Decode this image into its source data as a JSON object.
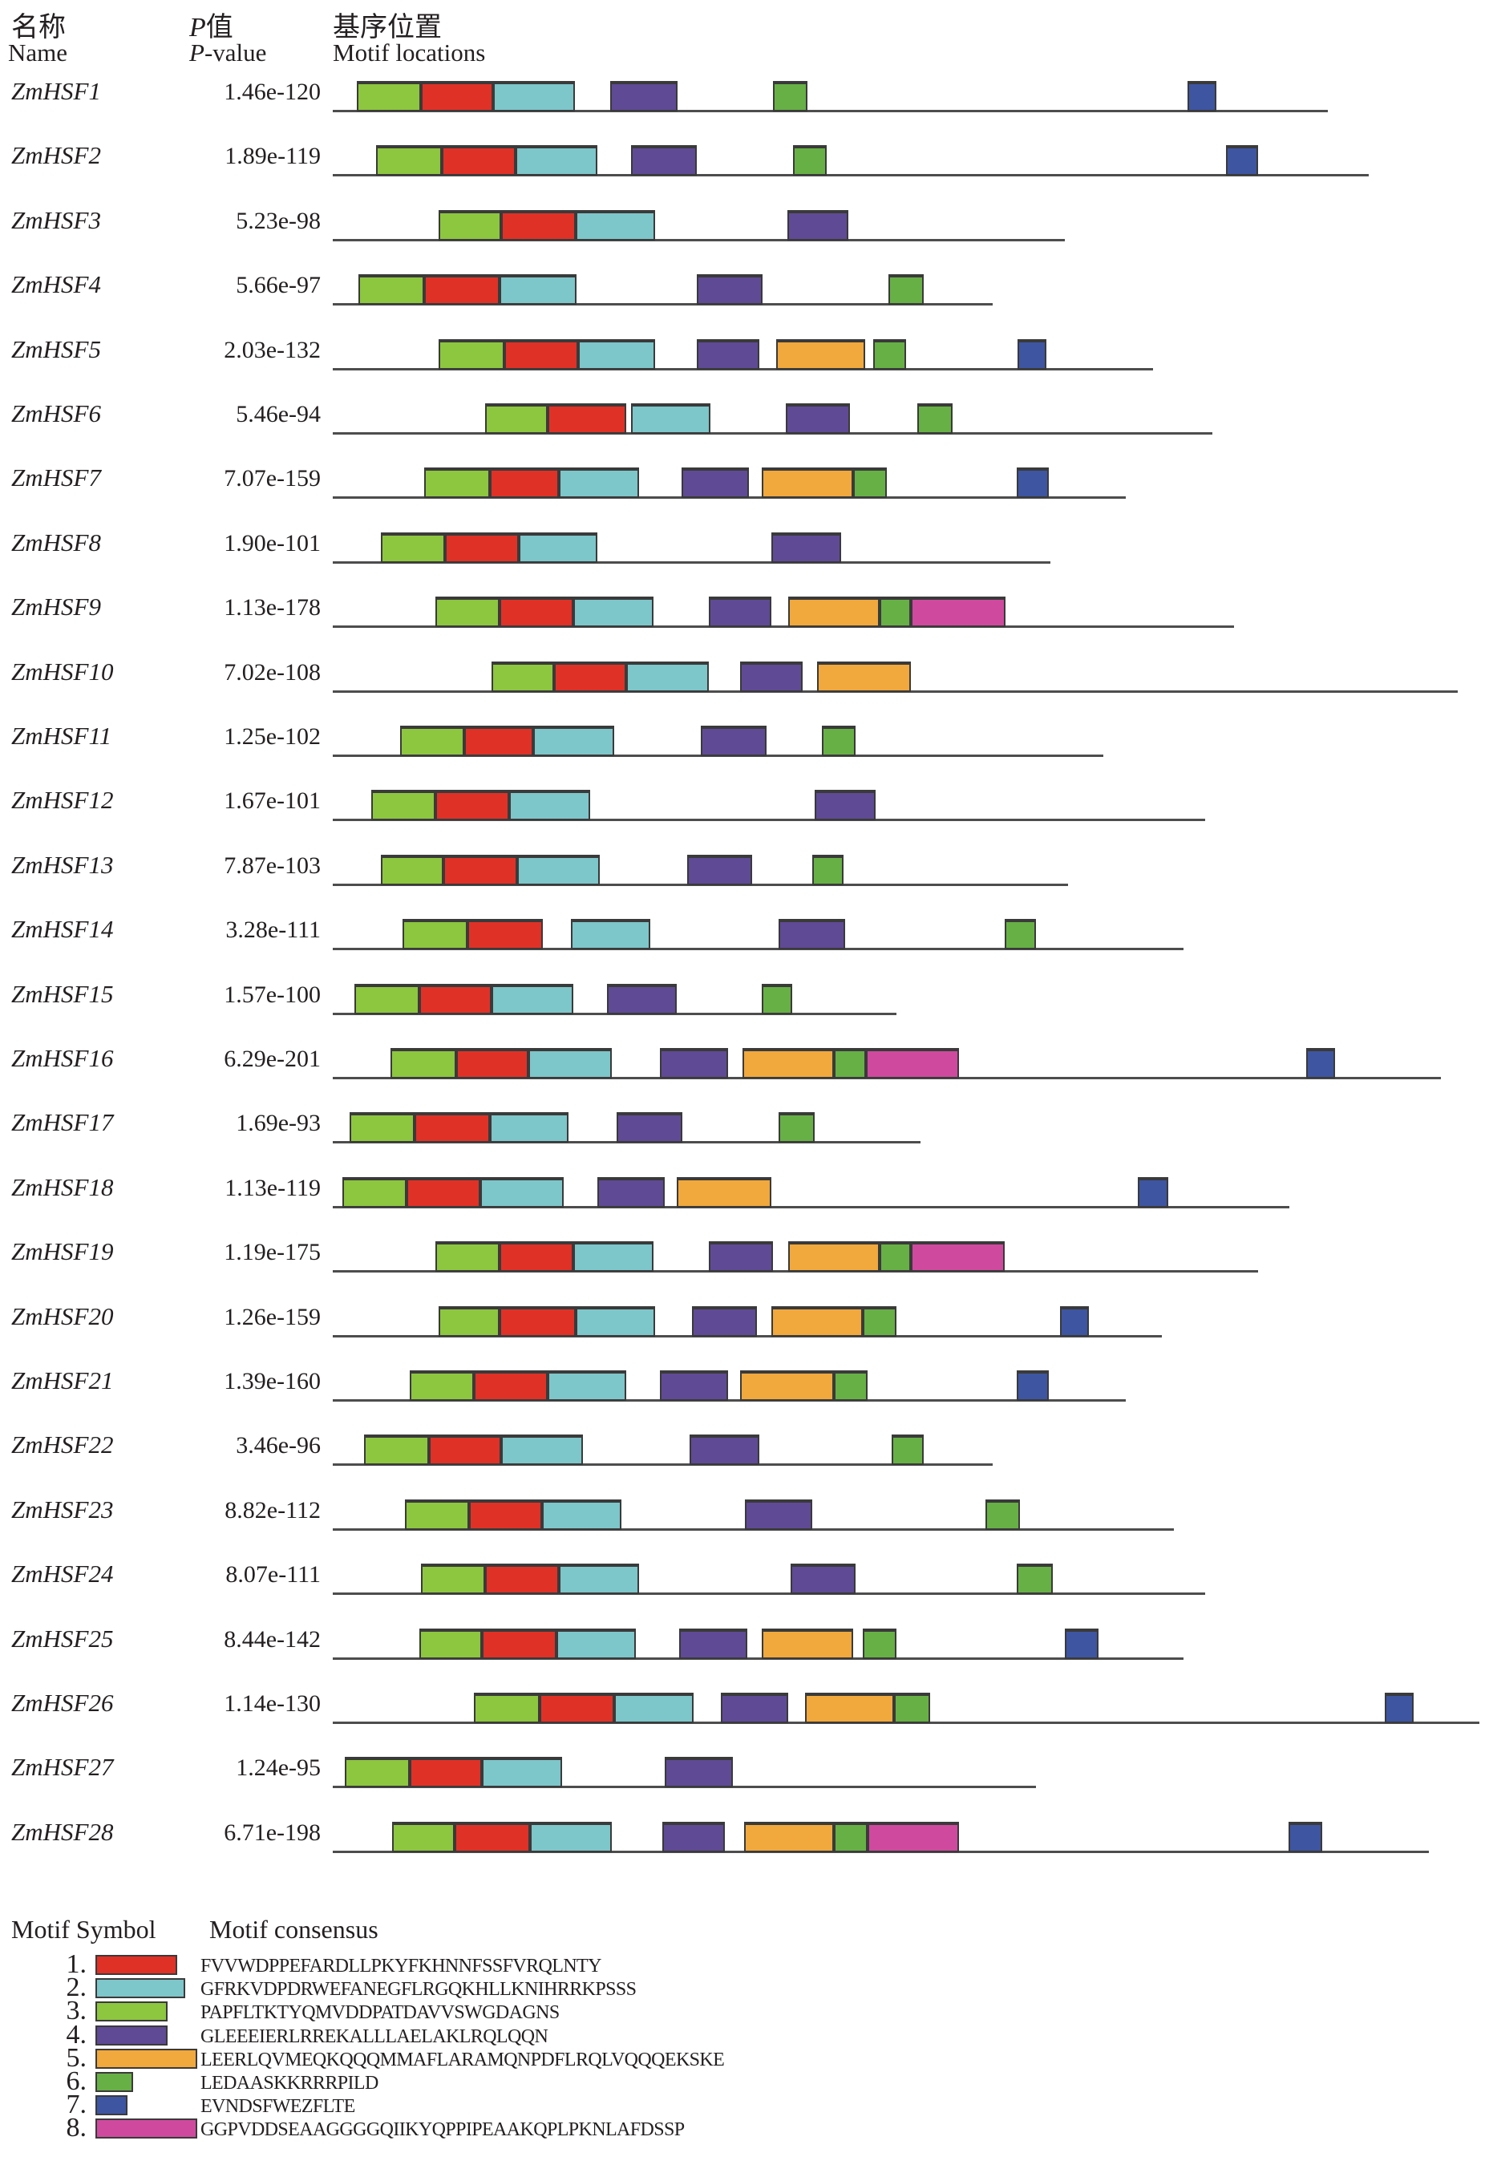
{
  "header": {
    "name_zh": "名称",
    "name_en": "Name",
    "pvalue_p": "P",
    "pvalue_zh_rest": "值",
    "pvalue_en_rest": "-value",
    "motif_zh": "基序位置",
    "motif_en": "Motif locations"
  },
  "colors": {
    "1": "#e03127",
    "2": "#7dc6ca",
    "3": "#8dc63f",
    "4": "#5f4a95",
    "5": "#f1a83c",
    "6": "#67b045",
    "7": "#3e55a1",
    "8": "#cf4a9e",
    "line": "#4d4d4d",
    "block_border": "#3a3a3a"
  },
  "chart_data": {
    "type": "motif-location-diagram",
    "note": "Each row: gene name, MEME combined P-value, protein line length (px) and motif blocks [motif_id, offset_px, width_px] measured from line start",
    "rows": [
      {
        "name": "ZmHSF1",
        "pvalue": "1.46e-120",
        "length": 1241,
        "motifs": [
          [
            3,
            30,
            80
          ],
          [
            1,
            110,
            90
          ],
          [
            2,
            200,
            102
          ],
          [
            4,
            346,
            84
          ],
          [
            6,
            549,
            43
          ],
          [
            7,
            1066,
            36
          ]
        ]
      },
      {
        "name": "ZmHSF2",
        "pvalue": "1.89e-119",
        "length": 1292,
        "motifs": [
          [
            3,
            54,
            82
          ],
          [
            1,
            136,
            92
          ],
          [
            2,
            228,
            102
          ],
          [
            4,
            372,
            82
          ],
          [
            6,
            574,
            42
          ],
          [
            7,
            1114,
            40
          ]
        ]
      },
      {
        "name": "ZmHSF3",
        "pvalue": "5.23e-98",
        "length": 913,
        "motifs": [
          [
            3,
            132,
            78
          ],
          [
            1,
            210,
            93
          ],
          [
            2,
            303,
            99
          ],
          [
            4,
            567,
            76
          ]
        ]
      },
      {
        "name": "ZmHSF4",
        "pvalue": "5.66e-97",
        "length": 823,
        "motifs": [
          [
            3,
            32,
            82
          ],
          [
            1,
            114,
            94
          ],
          [
            2,
            208,
            96
          ],
          [
            4,
            454,
            82
          ],
          [
            6,
            693,
            44
          ]
        ]
      },
      {
        "name": "ZmHSF5",
        "pvalue": "2.03e-132",
        "length": 1023,
        "motifs": [
          [
            3,
            132,
            82
          ],
          [
            1,
            214,
            92
          ],
          [
            2,
            306,
            96
          ],
          [
            4,
            454,
            78
          ],
          [
            5,
            553,
            111
          ],
          [
            6,
            674,
            41
          ],
          [
            7,
            854,
            36
          ]
        ]
      },
      {
        "name": "ZmHSF6",
        "pvalue": "5.46e-94",
        "length": 1097,
        "motifs": [
          [
            3,
            190,
            78
          ],
          [
            1,
            268,
            98
          ],
          [
            2,
            372,
            99
          ],
          [
            4,
            565,
            80
          ],
          [
            6,
            729,
            44
          ]
        ]
      },
      {
        "name": "ZmHSF7",
        "pvalue": "7.07e-159",
        "length": 989,
        "motifs": [
          [
            3,
            114,
            82
          ],
          [
            1,
            196,
            86
          ],
          [
            2,
            282,
            100
          ],
          [
            4,
            435,
            84
          ],
          [
            5,
            535,
            114
          ],
          [
            6,
            649,
            42
          ],
          [
            7,
            853,
            40
          ]
        ]
      },
      {
        "name": "ZmHSF8",
        "pvalue": "1.90e-101",
        "length": 895,
        "motifs": [
          [
            3,
            60,
            80
          ],
          [
            1,
            140,
            92
          ],
          [
            2,
            232,
            98
          ],
          [
            4,
            547,
            87
          ]
        ]
      },
      {
        "name": "ZmHSF9",
        "pvalue": "1.13e-178",
        "length": 1124,
        "motifs": [
          [
            3,
            128,
            80
          ],
          [
            1,
            208,
            92
          ],
          [
            2,
            300,
            100
          ],
          [
            4,
            469,
            78
          ],
          [
            5,
            568,
            114
          ],
          [
            6,
            682,
            39
          ],
          [
            8,
            721,
            118
          ]
        ]
      },
      {
        "name": "ZmHSF10",
        "pvalue": "7.02e-108",
        "length": 1403,
        "motifs": [
          [
            3,
            198,
            78
          ],
          [
            1,
            276,
            90
          ],
          [
            2,
            366,
            103
          ],
          [
            4,
            508,
            78
          ],
          [
            5,
            604,
            117
          ]
        ]
      },
      {
        "name": "ZmHSF11",
        "pvalue": "1.25e-102",
        "length": 961,
        "motifs": [
          [
            3,
            84,
            80
          ],
          [
            1,
            164,
            86
          ],
          [
            2,
            250,
            101
          ],
          [
            4,
            459,
            82
          ],
          [
            6,
            610,
            42
          ]
        ]
      },
      {
        "name": "ZmHSF12",
        "pvalue": "1.67e-101",
        "length": 1088,
        "motifs": [
          [
            3,
            48,
            80
          ],
          [
            1,
            128,
            92
          ],
          [
            2,
            220,
            101
          ],
          [
            4,
            601,
            76
          ]
        ]
      },
      {
        "name": "ZmHSF13",
        "pvalue": "7.87e-103",
        "length": 917,
        "motifs": [
          [
            3,
            60,
            78
          ],
          [
            1,
            138,
            92
          ],
          [
            2,
            230,
            103
          ],
          [
            4,
            442,
            81
          ],
          [
            6,
            598,
            39
          ]
        ]
      },
      {
        "name": "ZmHSF14",
        "pvalue": "3.28e-111",
        "length": 1061,
        "motifs": [
          [
            3,
            87,
            81
          ],
          [
            1,
            168,
            94
          ],
          [
            2,
            297,
            99
          ],
          [
            4,
            556,
            83
          ],
          [
            6,
            838,
            39
          ]
        ]
      },
      {
        "name": "ZmHSF15",
        "pvalue": "1.57e-100",
        "length": 703,
        "motifs": [
          [
            3,
            27,
            81
          ],
          [
            1,
            108,
            90
          ],
          [
            2,
            198,
            102
          ],
          [
            4,
            342,
            87
          ],
          [
            6,
            535,
            38
          ]
        ]
      },
      {
        "name": "ZmHSF16",
        "pvalue": "6.29e-201",
        "length": 1382,
        "motifs": [
          [
            3,
            72,
            82
          ],
          [
            1,
            154,
            90
          ],
          [
            2,
            244,
            104
          ],
          [
            4,
            408,
            85
          ],
          [
            5,
            511,
            114
          ],
          [
            6,
            625,
            40
          ],
          [
            8,
            665,
            116
          ],
          [
            7,
            1214,
            36
          ]
        ]
      },
      {
        "name": "ZmHSF17",
        "pvalue": "1.69e-93",
        "length": 733,
        "motifs": [
          [
            3,
            21,
            81
          ],
          [
            1,
            102,
            94
          ],
          [
            2,
            196,
            98
          ],
          [
            4,
            354,
            82
          ],
          [
            6,
            556,
            45
          ]
        ]
      },
      {
        "name": "ZmHSF18",
        "pvalue": "1.13e-119",
        "length": 1193,
        "motifs": [
          [
            3,
            12,
            80
          ],
          [
            1,
            92,
            92
          ],
          [
            2,
            184,
            104
          ],
          [
            4,
            330,
            84
          ],
          [
            5,
            429,
            118
          ],
          [
            7,
            1004,
            38
          ]
        ]
      },
      {
        "name": "ZmHSF19",
        "pvalue": "1.19e-175",
        "length": 1154,
        "motifs": [
          [
            3,
            128,
            80
          ],
          [
            1,
            208,
            92
          ],
          [
            2,
            300,
            100
          ],
          [
            4,
            469,
            80
          ],
          [
            5,
            568,
            114
          ],
          [
            6,
            682,
            39
          ],
          [
            8,
            721,
            117
          ]
        ]
      },
      {
        "name": "ZmHSF20",
        "pvalue": "1.26e-159",
        "length": 1034,
        "motifs": [
          [
            3,
            132,
            76
          ],
          [
            1,
            208,
            95
          ],
          [
            2,
            303,
            99
          ],
          [
            4,
            448,
            81
          ],
          [
            5,
            547,
            114
          ],
          [
            6,
            661,
            42
          ],
          [
            7,
            907,
            36
          ]
        ]
      },
      {
        "name": "ZmHSF21",
        "pvalue": "1.39e-160",
        "length": 989,
        "motifs": [
          [
            3,
            96,
            80
          ],
          [
            1,
            176,
            92
          ],
          [
            2,
            268,
            98
          ],
          [
            4,
            408,
            85
          ],
          [
            5,
            508,
            117
          ],
          [
            6,
            625,
            42
          ],
          [
            7,
            853,
            40
          ]
        ]
      },
      {
        "name": "ZmHSF22",
        "pvalue": "3.46e-96",
        "length": 823,
        "motifs": [
          [
            3,
            39,
            81
          ],
          [
            1,
            120,
            90
          ],
          [
            2,
            210,
            102
          ],
          [
            4,
            445,
            87
          ],
          [
            6,
            697,
            40
          ]
        ]
      },
      {
        "name": "ZmHSF23",
        "pvalue": "8.82e-112",
        "length": 1049,
        "motifs": [
          [
            3,
            90,
            80
          ],
          [
            1,
            170,
            91
          ],
          [
            2,
            261,
            99
          ],
          [
            4,
            514,
            84
          ],
          [
            6,
            814,
            43
          ]
        ]
      },
      {
        "name": "ZmHSF24",
        "pvalue": "8.07e-111",
        "length": 1088,
        "motifs": [
          [
            3,
            110,
            80
          ],
          [
            1,
            190,
            92
          ],
          [
            2,
            282,
            100
          ],
          [
            4,
            571,
            81
          ],
          [
            6,
            853,
            45
          ]
        ]
      },
      {
        "name": "ZmHSF25",
        "pvalue": "8.44e-142",
        "length": 1061,
        "motifs": [
          [
            3,
            108,
            78
          ],
          [
            1,
            186,
            93
          ],
          [
            2,
            279,
            99
          ],
          [
            4,
            432,
            85
          ],
          [
            5,
            535,
            114
          ],
          [
            6,
            661,
            42
          ],
          [
            7,
            913,
            42
          ]
        ]
      },
      {
        "name": "ZmHSF26",
        "pvalue": "1.14e-130",
        "length": 1430,
        "motifs": [
          [
            3,
            176,
            82
          ],
          [
            1,
            258,
            93
          ],
          [
            2,
            351,
            99
          ],
          [
            4,
            484,
            84
          ],
          [
            5,
            589,
            111
          ],
          [
            6,
            700,
            45
          ],
          [
            7,
            1312,
            36
          ]
        ]
      },
      {
        "name": "ZmHSF27",
        "pvalue": "1.24e-95",
        "length": 877,
        "motifs": [
          [
            3,
            15,
            81
          ],
          [
            1,
            96,
            90
          ],
          [
            2,
            186,
            100
          ],
          [
            4,
            414,
            85
          ]
        ]
      },
      {
        "name": "ZmHSF28",
        "pvalue": "6.71e-198",
        "length": 1367,
        "motifs": [
          [
            3,
            74,
            78
          ],
          [
            1,
            152,
            94
          ],
          [
            2,
            246,
            102
          ],
          [
            4,
            411,
            78
          ],
          [
            5,
            513,
            112
          ],
          [
            6,
            625,
            42
          ],
          [
            8,
            667,
            114
          ],
          [
            7,
            1192,
            42
          ]
        ]
      }
    ]
  },
  "legend": {
    "symbol_header": "Motif Symbol",
    "consensus_header": "Motif consensus",
    "items": [
      {
        "num": "1.",
        "motif": 1,
        "swatch_width": 102,
        "consensus": "FVVWDPPEFARDLLPKYFKHNNFSSFVRQLNTY"
      },
      {
        "num": "2.",
        "motif": 2,
        "swatch_width": 112,
        "consensus": "GFRKVDPDRWEFANEGFLRGQKHLLKNIHRRKPSSS"
      },
      {
        "num": "3.",
        "motif": 3,
        "swatch_width": 90,
        "consensus": "PAPFLTKTYQMVDDPATDAVVSWGDAGNS"
      },
      {
        "num": "4.",
        "motif": 4,
        "swatch_width": 90,
        "consensus": "GLEEEIERLRREKALLLAELAKLRQLQQN"
      },
      {
        "num": "5.",
        "motif": 5,
        "swatch_width": 127,
        "consensus": "LEERLQVMEQKQQQMMAFLARAMQNPDFLRQLVQQQEKSKE"
      },
      {
        "num": "6.",
        "motif": 6,
        "swatch_width": 47,
        "consensus": "LEDAASKKRRRPILD"
      },
      {
        "num": "7.",
        "motif": 7,
        "swatch_width": 40,
        "consensus": "EVNDSFWEZFLTE"
      },
      {
        "num": "8.",
        "motif": 8,
        "swatch_width": 127,
        "consensus": "GGPVDDSEAAGGGGQIIKYQPPIPEAAKQPLPKNLAFDSSP"
      }
    ]
  }
}
